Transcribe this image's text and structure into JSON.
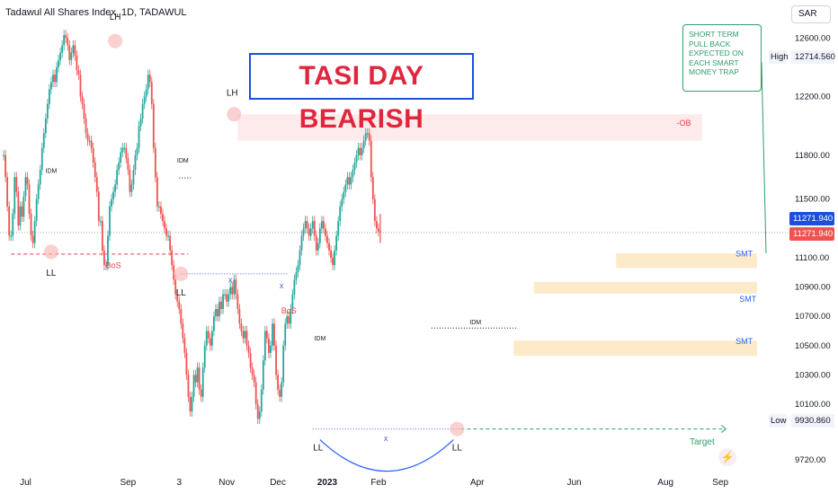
{
  "header": {
    "title": "Tadawul All Shares Index, 1D, TADAWUL"
  },
  "currency": "SAR",
  "banner": "TASI DAY BEARISH",
  "note": "SHORT TERM\nPULL BACK\nEXPECTED ON\nEACH SMART\nMONEY TRAP",
  "price_axis": {
    "high_label": "High",
    "high_value": "12714.560",
    "low_label": "Low",
    "low_value": "9930.860",
    "last_price_1": "11271.940",
    "last_price_2": "11271.940"
  },
  "icons": {
    "flash": "lightning-icon"
  },
  "colors": {
    "up": "#26a69a",
    "down": "#ef5350",
    "annotation_red": "#e5404a",
    "blue_marker": "#2962ff",
    "zone_orange": "#fde8c2",
    "zone_red": "#fde9e9",
    "target_green": "#2e9e6b"
  },
  "chart_data": {
    "type": "line",
    "title": "Tadawul All Shares Index, 1D, TADAWUL",
    "y_ticks": [
      12600,
      12200,
      11800,
      11500,
      11100,
      10900,
      10700,
      10500,
      10300,
      10100,
      9720
    ],
    "y_range": [
      9640,
      12860
    ],
    "x_ticks": [
      "Jul",
      "Sep",
      "3",
      "Nov",
      "Dec",
      "2023",
      "Feb",
      "Apr",
      "Jun",
      "Aug",
      "Sep"
    ],
    "x_domain": [
      -2,
      416
    ],
    "x_tick_index": [
      12,
      68,
      96,
      122,
      150,
      177,
      205,
      259,
      312,
      362,
      392
    ],
    "high_value": 12714.56,
    "low_value": 9930.86,
    "last_value": 11271.94,
    "close_series": {
      "start_index": 0,
      "values": [
        11800,
        11650,
        11450,
        11250,
        11250,
        11400,
        11650,
        11550,
        11320,
        11450,
        11380,
        11520,
        11650,
        11600,
        11400,
        11250,
        11200,
        11350,
        11500,
        11600,
        11700,
        11850,
        11950,
        12050,
        12150,
        12250,
        12300,
        12350,
        12300,
        12400,
        12450,
        12500,
        12550,
        12620,
        12600,
        12550,
        12450,
        12500,
        12550,
        12480,
        12380,
        12350,
        12200,
        12150,
        12050,
        11950,
        11900,
        11900,
        11850,
        11750,
        11650,
        11550,
        11350,
        11350,
        11150,
        11050,
        11050,
        11250,
        11450,
        11500,
        11550,
        11600,
        11700,
        11750,
        11820,
        11850,
        11850,
        11780,
        11700,
        11550,
        11600,
        11700,
        11800,
        11850,
        12000,
        12050,
        12150,
        12200,
        12250,
        12350,
        12300,
        12150,
        11850,
        11650,
        11450,
        11450,
        11400,
        11350,
        11300,
        11250,
        11250,
        11150,
        11050,
        10950,
        10850,
        10800,
        10750,
        10650,
        10550,
        10450,
        10300,
        10150,
        10050,
        10150,
        10300,
        10250,
        10350,
        10200,
        10150,
        10350,
        10500,
        10600,
        10550,
        10500,
        10600,
        10700,
        10750,
        10700,
        10800,
        10750,
        10850,
        10850,
        10800,
        10850,
        10900,
        10850,
        10950,
        10850,
        10750,
        10650,
        10600,
        10550,
        10600,
        10500,
        10450,
        10350,
        10300,
        10250,
        10100,
        10000,
        10050,
        10200,
        10400,
        10600,
        10550,
        10450,
        10500,
        10650,
        10500,
        10300,
        10200,
        10150,
        10250,
        10500,
        10650,
        10700,
        10650,
        10750,
        10850,
        10950,
        11000,
        11050,
        11150,
        11250,
        11300,
        11350,
        11300,
        11250,
        11300,
        11350,
        11250,
        11150,
        11200,
        11300,
        11350,
        11300,
        11250,
        11200,
        11150,
        11100,
        11050,
        11150,
        11250,
        11350,
        11450,
        11500,
        11550,
        11600,
        11650,
        11600,
        11650,
        11700,
        11750,
        11800,
        11850,
        11800,
        11850,
        11900,
        11950,
        11950,
        11900,
        11650,
        11500,
        11350,
        11300,
        11280,
        11271.94
      ]
    },
    "series_overlay": {
      "start_index": 182,
      "values": [
        10800,
        10820,
        10840,
        10830,
        10860,
        10880,
        10900,
        10870,
        10850,
        10900,
        10930,
        10880,
        10860,
        10880
      ]
    },
    "levels": [
      {
        "name": "bos-line",
        "y": 11125,
        "x_from": 4,
        "x_to": 101
      },
      {
        "name": "ll-line-2",
        "y": 10990,
        "x_from": 97,
        "x_to": 155
      },
      {
        "name": "idm-line-1",
        "y": 11645,
        "x_from": 96,
        "x_to": 103
      },
      {
        "name": "idm-line-2",
        "y": 10620,
        "x_from": 234,
        "x_to": 281
      },
      {
        "name": "low-line",
        "y": 9930.86,
        "x_from": 169,
        "x_to": 250
      },
      {
        "name": "target-line",
        "y": 9930.86,
        "x_from": 250,
        "x_to": 395
      }
    ],
    "zones": [
      {
        "name": "ob-zone",
        "label": "-OB",
        "y_top": 12080,
        "y_bottom": 11900,
        "x_from": 128,
        "x_to": 382
      },
      {
        "name": "smt-zone-1",
        "label": "SMT",
        "y_top": 11130,
        "y_bottom": 11030,
        "x_from": 335,
        "x_to": 412
      },
      {
        "name": "smt-zone-2",
        "label": "SMT",
        "y_top": 10935,
        "y_bottom": 10855,
        "x_from": 290,
        "x_to": 412
      },
      {
        "name": "smt-zone-3",
        "label": "SMT",
        "y_top": 10535,
        "y_bottom": 10430,
        "x_from": 279,
        "x_to": 412
      }
    ],
    "swing_labels": [
      {
        "text": "LH",
        "x": 61,
        "y": 12640
      },
      {
        "text": "LH",
        "x": 125,
        "y": 12120
      },
      {
        "text": "LL",
        "x": 26,
        "y": 11125
      },
      {
        "text": "LL",
        "x": 97,
        "y": 10990
      },
      {
        "text": "LL",
        "x": 172,
        "y": 9930.86
      },
      {
        "text": "LL",
        "x": 248,
        "y": 9930.86
      }
    ],
    "annotations": [
      {
        "text": "IDM",
        "x": 26,
        "y": 11680
      },
      {
        "text": "IDM",
        "x": 98,
        "y": 11750
      },
      {
        "text": "IDM",
        "x": 173,
        "y": 10535
      },
      {
        "text": "IDM",
        "x": 258,
        "y": 10645
      },
      {
        "text": "BoS",
        "x": 60,
        "y": 11030
      },
      {
        "text": "BoS",
        "x": 156,
        "y": 10720
      },
      {
        "text": "x",
        "x": 124,
        "y": 10930
      },
      {
        "text": "x",
        "x": 152,
        "y": 10890
      },
      {
        "text": "x",
        "x": 209,
        "y": 9850
      },
      {
        "text": "-OB",
        "x": 372,
        "y": 12000
      },
      {
        "text": "SMT",
        "x": 405,
        "y": 11110
      },
      {
        "text": "SMT",
        "x": 407,
        "y": 10800
      },
      {
        "text": "SMT",
        "x": 405,
        "y": 10510
      },
      {
        "text": "Target",
        "x": 382,
        "y": 9825
      }
    ],
    "circles": [
      {
        "x": 61,
        "y": 12580
      },
      {
        "x": 126,
        "y": 12080
      },
      {
        "x": 26,
        "y": 11140
      },
      {
        "x": 97,
        "y": 10990
      },
      {
        "x": 248,
        "y": 9930.86
      }
    ]
  }
}
